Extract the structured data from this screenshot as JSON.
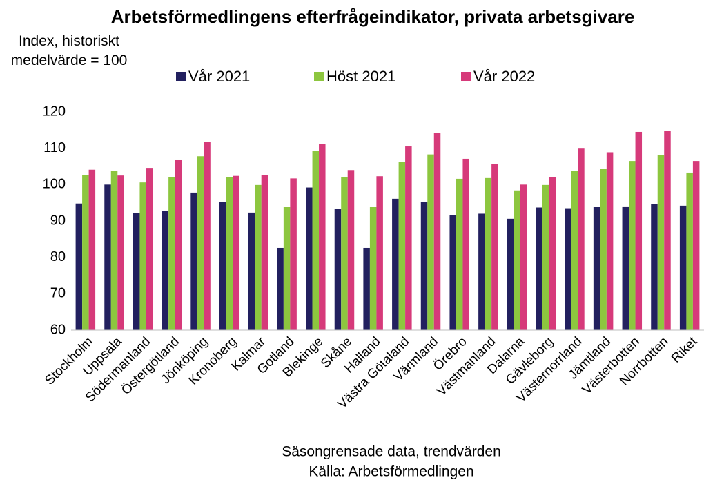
{
  "chart_data": {
    "type": "bar",
    "title": "Arbetsförmedlingens efterfrågeindikator, privata arbetsgivare",
    "y_label": "Index, historiskt medelvärde = 100",
    "x_label": "Säsongrensade data, trendvärden",
    "source": "Källa: Arbetsförmedlingen",
    "categories": [
      "Stockholm",
      "Uppsala",
      "Södermanland",
      "Östergötland",
      "Jönköping",
      "Kronoberg",
      "Kalmar",
      "Gotland",
      "Blekinge",
      "Skåne",
      "Halland",
      "Västra Götaland",
      "Värmland",
      "Örebro",
      "Västmanland",
      "Dalarna",
      "Gävleborg",
      "Västernorrland",
      "Jämtland",
      "Västerbotten",
      "Norrbotten",
      "Riket"
    ],
    "series": [
      {
        "name": "Vår 2021",
        "color": "#22205f",
        "values": [
          94.8,
          100.0,
          92.1,
          92.7,
          97.8,
          95.2,
          92.3,
          82.6,
          99.2,
          93.3,
          82.6,
          96.1,
          95.2,
          91.7,
          92.0,
          90.6,
          93.7,
          93.5,
          93.9,
          94.0,
          94.6,
          94.2
        ]
      },
      {
        "name": "Höst 2021",
        "color": "#8dc63f",
        "values": [
          102.7,
          103.8,
          100.6,
          102.0,
          107.8,
          102.0,
          99.9,
          93.8,
          109.3,
          102.0,
          93.9,
          106.3,
          108.3,
          101.6,
          101.8,
          98.4,
          99.9,
          103.8,
          104.3,
          106.5,
          108.2,
          103.3
        ]
      },
      {
        "name": "Vår 2022",
        "color": "#d63a7a",
        "values": [
          104.1,
          102.5,
          104.6,
          106.9,
          111.8,
          102.4,
          102.6,
          101.7,
          111.2,
          104.0,
          102.3,
          110.5,
          114.3,
          107.1,
          105.7,
          100.0,
          102.1,
          109.9,
          108.9,
          114.5,
          114.7,
          106.5
        ]
      }
    ],
    "ylim": [
      60,
      120
    ],
    "yticks": [
      60,
      70,
      80,
      90,
      100,
      110,
      120
    ],
    "grid": false,
    "legend": "top"
  }
}
